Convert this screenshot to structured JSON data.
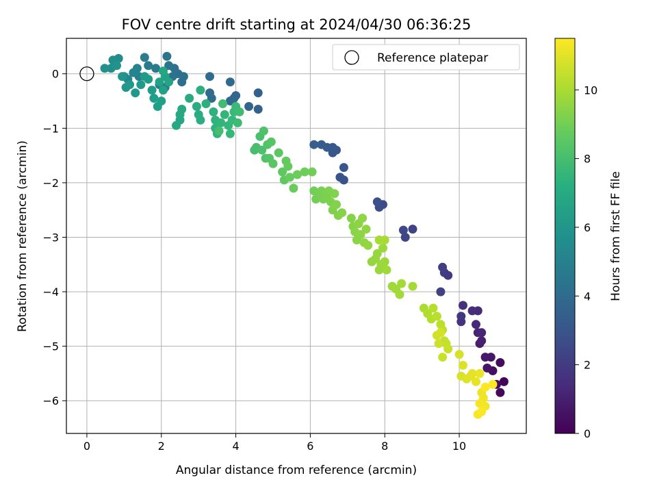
{
  "chart_data": {
    "type": "scatter",
    "title": "FOV centre drift starting at 2024/04/30 06:36:25",
    "xlabel": "Angular distance from reference (arcmin)",
    "ylabel": "Rotation from reference (arcmin)",
    "xlim": [
      -0.55,
      11.8
    ],
    "ylim": [
      -6.6,
      0.65
    ],
    "xticks": [
      "0",
      "2",
      "4",
      "6",
      "8",
      "10"
    ],
    "yticks": [
      "0",
      "−1",
      "−2",
      "−3",
      "−4",
      "−5",
      "−6"
    ],
    "grid": true,
    "legend_placement": "top-right",
    "legend": [
      {
        "label": "Reference platepar",
        "marker": "open-circle"
      }
    ],
    "reference_point": {
      "x": 0,
      "y": 0
    },
    "colorbar": {
      "label": "Hours from first FF file",
      "range": [
        0,
        11.5
      ],
      "ticks": [
        "0",
        "2",
        "4",
        "6",
        "8",
        "10"
      ],
      "colormap": "viridis"
    },
    "points": [
      [
        11.2,
        -5.65,
        0.1
      ],
      [
        11.1,
        -5.85,
        0.2
      ],
      [
        11.0,
        -5.7,
        0.3
      ],
      [
        11.1,
        -5.3,
        0.4
      ],
      [
        10.9,
        -5.45,
        0.5
      ],
      [
        10.75,
        -5.4,
        0.6
      ],
      [
        10.85,
        -5.2,
        0.7
      ],
      [
        10.7,
        -5.2,
        0.8
      ],
      [
        10.55,
        -4.95,
        0.9
      ],
      [
        10.6,
        -4.9,
        1.0
      ],
      [
        10.5,
        -4.75,
        1.1
      ],
      [
        10.6,
        -4.75,
        1.2
      ],
      [
        10.45,
        -4.6,
        1.3
      ],
      [
        10.5,
        -4.35,
        1.4
      ],
      [
        10.35,
        -4.35,
        1.5
      ],
      [
        10.1,
        -4.25,
        1.6
      ],
      [
        10.05,
        -4.55,
        1.7
      ],
      [
        10.05,
        -4.45,
        1.8
      ],
      [
        9.7,
        -3.7,
        1.9
      ],
      [
        9.6,
        -3.65,
        2.0
      ],
      [
        9.55,
        -3.55,
        2.1
      ],
      [
        9.5,
        -4.0,
        2.2
      ],
      [
        8.75,
        -2.85,
        2.3
      ],
      [
        8.55,
        -3.0,
        2.4
      ],
      [
        8.5,
        -2.87,
        2.5
      ],
      [
        7.95,
        -2.4,
        2.6
      ],
      [
        7.85,
        -2.45,
        2.7
      ],
      [
        7.8,
        -2.35,
        2.8
      ],
      [
        6.9,
        -1.95,
        2.9
      ],
      [
        6.8,
        -1.9,
        3.0
      ],
      [
        6.9,
        -1.72,
        3.05
      ],
      [
        6.7,
        -1.4,
        3.1
      ],
      [
        6.6,
        -1.45,
        3.15
      ],
      [
        6.6,
        -1.35,
        3.2
      ],
      [
        6.45,
        -1.35,
        3.3
      ],
      [
        6.3,
        -1.3,
        3.4
      ],
      [
        6.1,
        -1.3,
        3.45
      ],
      [
        4.6,
        -0.35,
        3.5
      ],
      [
        4.6,
        -0.65,
        3.55
      ],
      [
        4.35,
        -0.6,
        3.65
      ],
      [
        4.0,
        -0.4,
        3.75
      ],
      [
        3.95,
        -0.45,
        3.8
      ],
      [
        3.85,
        -0.5,
        3.85
      ],
      [
        3.85,
        -0.15,
        3.9
      ],
      [
        3.3,
        -0.05,
        3.95
      ],
      [
        3.35,
        -0.45,
        4.0
      ],
      [
        3.3,
        -0.35,
        4.05
      ],
      [
        2.55,
        -0.15,
        4.15
      ],
      [
        2.6,
        -0.05,
        4.2
      ],
      [
        2.45,
        0.0,
        4.25
      ],
      [
        2.35,
        0.1,
        4.3
      ],
      [
        2.3,
        -0.05,
        4.35
      ],
      [
        2.2,
        0.15,
        4.4
      ],
      [
        2.15,
        0.32,
        4.45
      ],
      [
        2.1,
        -0.25,
        4.55
      ],
      [
        1.95,
        -0.2,
        4.6
      ],
      [
        1.85,
        0.1,
        4.7
      ],
      [
        1.65,
        0.15,
        4.8
      ],
      [
        1.55,
        0.3,
        4.9
      ],
      [
        1.4,
        -0.05,
        5.0
      ],
      [
        1.35,
        0.1,
        5.1
      ],
      [
        1.25,
        0.02,
        5.2
      ],
      [
        1.1,
        -0.1,
        5.3
      ],
      [
        1.0,
        -0.05,
        5.4
      ],
      [
        0.85,
        0.28,
        5.5
      ],
      [
        0.7,
        0.25,
        5.6
      ],
      [
        0.65,
        0.1,
        5.7
      ],
      [
        0.48,
        0.1,
        5.8
      ],
      [
        0.8,
        0.15,
        5.9
      ],
      [
        0.95,
        -0.05,
        6.0
      ],
      [
        1.05,
        -0.25,
        6.05
      ],
      [
        1.15,
        -0.2,
        6.1
      ],
      [
        1.3,
        -0.35,
        6.15
      ],
      [
        1.45,
        -0.2,
        6.2
      ],
      [
        1.55,
        -0.05,
        6.25
      ],
      [
        1.65,
        -0.1,
        6.3
      ],
      [
        1.75,
        -0.3,
        6.35
      ],
      [
        1.8,
        -0.45,
        6.4
      ],
      [
        1.9,
        -0.6,
        6.45
      ],
      [
        2.0,
        -0.5,
        6.5
      ],
      [
        2.05,
        -0.3,
        6.55
      ],
      [
        1.95,
        -0.15,
        6.6
      ],
      [
        2.1,
        -0.05,
        6.65
      ],
      [
        2.2,
        -0.15,
        6.7
      ],
      [
        2.05,
        0.05,
        6.75
      ],
      [
        2.5,
        -0.85,
        6.8
      ],
      [
        2.4,
        -0.95,
        6.85
      ],
      [
        2.5,
        -0.75,
        6.9
      ],
      [
        2.55,
        -0.65,
        6.95
      ],
      [
        2.75,
        -0.45,
        7.0
      ],
      [
        2.95,
        -0.6,
        7.05
      ],
      [
        3.0,
        -0.75,
        7.1
      ],
      [
        3.05,
        -0.85,
        7.15
      ],
      [
        3.05,
        -0.3,
        7.2
      ],
      [
        3.2,
        -0.55,
        7.25
      ],
      [
        3.4,
        -0.7,
        7.3
      ],
      [
        3.45,
        -0.85,
        7.35
      ],
      [
        3.45,
        -1.0,
        7.4
      ],
      [
        3.5,
        -1.1,
        7.45
      ],
      [
        3.6,
        -0.9,
        7.5
      ],
      [
        3.7,
        -0.75,
        7.55
      ],
      [
        3.8,
        -0.95,
        7.6
      ],
      [
        3.85,
        -1.1,
        7.65
      ],
      [
        3.9,
        -0.85,
        7.7
      ],
      [
        3.95,
        -0.7,
        7.75
      ],
      [
        4.0,
        -0.6,
        7.8
      ],
      [
        4.05,
        -0.9,
        7.85
      ],
      [
        4.1,
        -0.7,
        7.9
      ],
      [
        3.65,
        -0.55,
        7.95
      ],
      [
        3.55,
        -1.05,
        8.0
      ],
      [
        4.5,
        -1.4,
        8.05
      ],
      [
        4.55,
        -1.35,
        8.1
      ],
      [
        4.65,
        -1.15,
        8.15
      ],
      [
        4.7,
        -1.4,
        8.2
      ],
      [
        4.75,
        -1.05,
        8.25
      ],
      [
        4.8,
        -1.55,
        8.3
      ],
      [
        4.85,
        -1.3,
        8.35
      ],
      [
        4.9,
        -1.55,
        8.4
      ],
      [
        4.95,
        -1.25,
        8.45
      ],
      [
        5.0,
        -1.65,
        8.5
      ],
      [
        5.15,
        -1.45,
        8.55
      ],
      [
        5.25,
        -1.8,
        8.6
      ],
      [
        5.3,
        -1.95,
        8.65
      ],
      [
        5.35,
        -1.6,
        8.7
      ],
      [
        5.4,
        -1.7,
        8.75
      ],
      [
        5.45,
        -1.9,
        8.8
      ],
      [
        5.55,
        -2.1,
        8.85
      ],
      [
        5.65,
        -1.85,
        8.9
      ],
      [
        5.85,
        -1.8,
        8.95
      ],
      [
        6.05,
        -1.8,
        9.0
      ],
      [
        6.1,
        -2.15,
        9.02
      ],
      [
        6.15,
        -2.3,
        9.05
      ],
      [
        6.2,
        -2.2,
        9.08
      ],
      [
        6.25,
        -2.25,
        9.1
      ],
      [
        6.3,
        -2.15,
        9.12
      ],
      [
        6.35,
        -2.3,
        9.15
      ],
      [
        6.4,
        -2.2,
        9.18
      ],
      [
        6.45,
        -2.25,
        9.2
      ],
      [
        6.5,
        -2.15,
        9.22
      ],
      [
        6.55,
        -2.35,
        9.25
      ],
      [
        6.6,
        -2.5,
        9.28
      ],
      [
        6.65,
        -2.2,
        9.3
      ],
      [
        6.7,
        -2.4,
        9.32
      ],
      [
        6.75,
        -2.6,
        9.35
      ],
      [
        6.85,
        -2.55,
        9.38
      ],
      [
        7.1,
        -2.65,
        9.4
      ],
      [
        7.15,
        -2.8,
        9.42
      ],
      [
        7.2,
        -2.9,
        9.45
      ],
      [
        7.25,
        -3.05,
        9.48
      ],
      [
        7.3,
        -2.75,
        9.5
      ],
      [
        7.35,
        -2.95,
        9.52
      ],
      [
        7.4,
        -2.65,
        9.55
      ],
      [
        7.45,
        -3.1,
        9.58
      ],
      [
        7.5,
        -2.85,
        9.6
      ],
      [
        7.55,
        -3.15,
        9.62
      ],
      [
        7.65,
        -3.45,
        9.65
      ],
      [
        7.75,
        -3.4,
        9.68
      ],
      [
        7.8,
        -3.3,
        9.7
      ],
      [
        7.85,
        -3.6,
        9.72
      ],
      [
        7.9,
        -3.5,
        9.75
      ],
      [
        7.95,
        -3.2,
        9.78
      ],
      [
        8.0,
        -3.45,
        9.8
      ],
      [
        8.05,
        -3.6,
        9.82
      ],
      [
        8.2,
        -3.9,
        9.85
      ],
      [
        8.3,
        -3.95,
        9.88
      ],
      [
        8.4,
        -4.05,
        9.9
      ],
      [
        8.45,
        -3.85,
        9.92
      ],
      [
        8.75,
        -3.9,
        9.95
      ],
      [
        7.85,
        -3.05,
        9.98
      ],
      [
        8.0,
        -3.05,
        10.0
      ],
      [
        9.05,
        -4.3,
        10.1
      ],
      [
        9.15,
        -4.4,
        10.15
      ],
      [
        9.25,
        -4.5,
        10.2
      ],
      [
        9.3,
        -4.3,
        10.25
      ],
      [
        9.4,
        -4.45,
        10.3
      ],
      [
        9.5,
        -4.6,
        10.35
      ],
      [
        9.55,
        -4.7,
        10.4
      ],
      [
        9.6,
        -4.9,
        10.45
      ],
      [
        9.65,
        -4.95,
        10.5
      ],
      [
        9.7,
        -5.05,
        10.55
      ],
      [
        9.55,
        -5.2,
        10.6
      ],
      [
        9.45,
        -4.95,
        10.65
      ],
      [
        9.4,
        -4.8,
        10.7
      ],
      [
        9.5,
        -4.75,
        10.75
      ],
      [
        10.0,
        -5.15,
        10.8
      ],
      [
        10.05,
        -5.55,
        10.85
      ],
      [
        10.1,
        -5.35,
        10.9
      ],
      [
        10.2,
        -5.6,
        10.95
      ],
      [
        10.3,
        -5.55,
        11.0
      ],
      [
        10.35,
        -5.5,
        11.05
      ],
      [
        10.45,
        -5.65,
        11.1
      ],
      [
        10.55,
        -5.5,
        11.15
      ],
      [
        10.6,
        -5.85,
        11.2
      ],
      [
        10.65,
        -5.95,
        11.25
      ],
      [
        10.7,
        -6.1,
        11.3
      ],
      [
        10.55,
        -6.05,
        11.35
      ],
      [
        10.5,
        -6.25,
        11.4
      ],
      [
        10.6,
        -6.2,
        11.45
      ],
      [
        10.7,
        -5.75,
        11.5
      ],
      [
        10.9,
        -5.7,
        11.5
      ]
    ]
  }
}
